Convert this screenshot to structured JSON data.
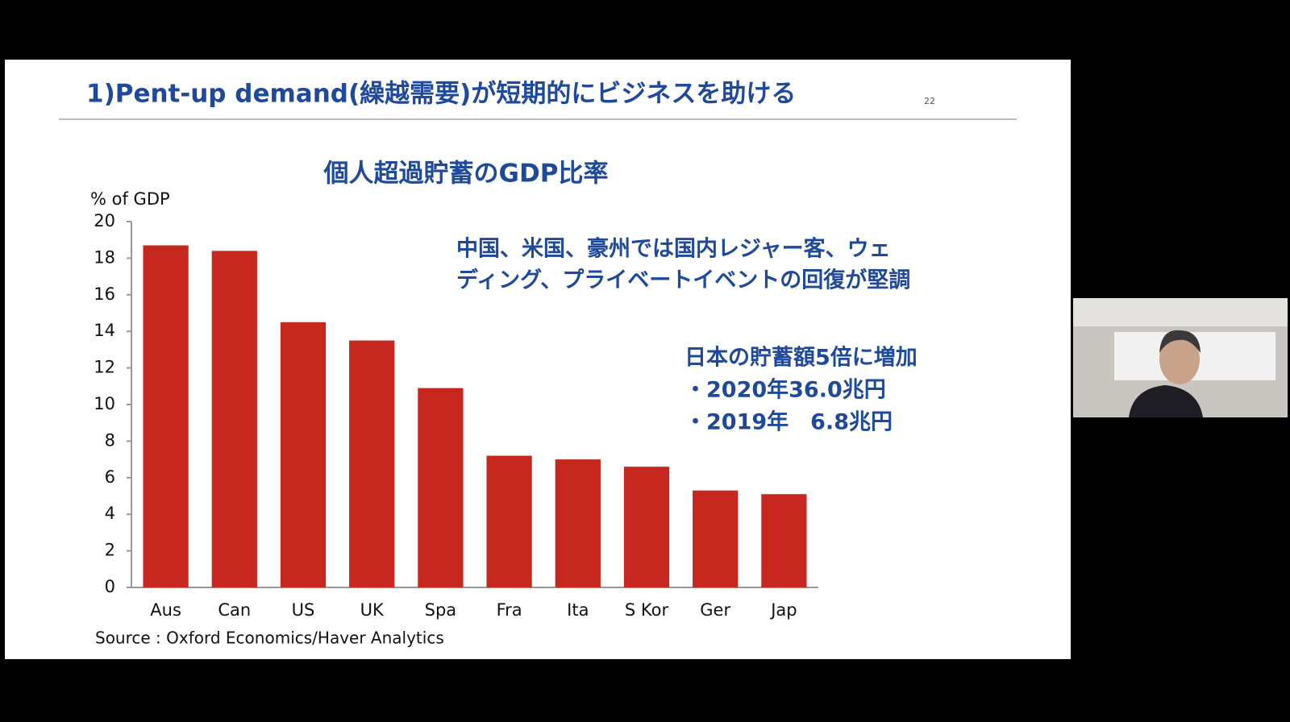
{
  "slide": {
    "title": "1)Pent-up demand(繰越需要)が短期的にビジネスを助ける",
    "page_number": "22",
    "annotation_1": [
      "中国、米国、豪州では国内レジャー客、ウェ",
      "ディング、プライベートイベントの回復が堅調"
    ],
    "annotation_2": [
      "日本の貯蓄額5倍に増加",
      "・2020年36.0兆円",
      "・2019年　6.8兆円"
    ],
    "source": "Source : Oxford Economics/Haver Analytics"
  },
  "chart_data": {
    "type": "bar",
    "title": "個人超過貯蓄のGDP比率",
    "y_label": "% of GDP",
    "categories": [
      "Aus",
      "Can",
      "US",
      "UK",
      "Spa",
      "Fra",
      "Ita",
      "S Kor",
      "Ger",
      "Jap"
    ],
    "values": [
      18.7,
      18.4,
      14.5,
      13.5,
      10.9,
      7.2,
      7.0,
      6.6,
      5.3,
      5.1
    ],
    "color": "#c6281f",
    "ylim": [
      0,
      20
    ],
    "yticks": [
      0,
      2,
      4,
      6,
      8,
      10,
      12,
      14,
      16,
      18,
      20
    ],
    "grid": false
  }
}
